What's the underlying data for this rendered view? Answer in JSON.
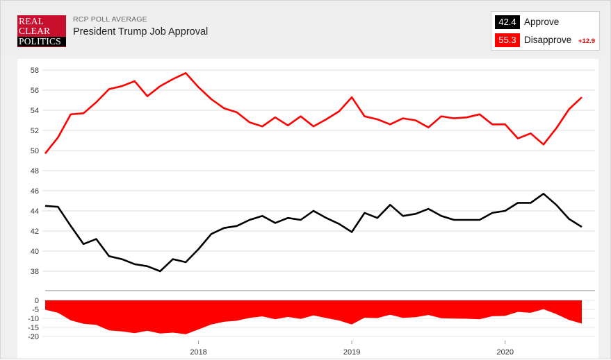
{
  "header": {
    "kicker": "RCP POLL AVERAGE",
    "title": "President Trump Job Approval",
    "logo_lines": [
      "REAL",
      "CLEAR",
      "POLITICS"
    ]
  },
  "legend": {
    "approve": {
      "value": "42.4",
      "label": "Approve",
      "color": "#000000"
    },
    "disapprove": {
      "value": "55.3",
      "label": "Disapprove",
      "color": "#ff0000"
    },
    "spread": "+12.9"
  },
  "chart_data": [
    {
      "type": "line",
      "ylim": [
        36,
        58
      ],
      "ytick_labels": [
        "38",
        "40",
        "42",
        "44",
        "46",
        "48",
        "50",
        "52",
        "54",
        "56",
        "58"
      ],
      "x_labels": [
        "2018",
        "2019",
        "2020"
      ],
      "x": [
        "2017-01",
        "2017-02",
        "2017-03",
        "2017-04",
        "2017-05",
        "2017-06",
        "2017-07",
        "2017-08",
        "2017-09",
        "2017-10",
        "2017-11",
        "2017-12",
        "2018-01",
        "2018-02",
        "2018-03",
        "2018-04",
        "2018-05",
        "2018-06",
        "2018-07",
        "2018-08",
        "2018-09",
        "2018-10",
        "2018-11",
        "2018-12",
        "2019-01",
        "2019-02",
        "2019-03",
        "2019-04",
        "2019-05",
        "2019-06",
        "2019-07",
        "2019-08",
        "2019-09",
        "2019-10",
        "2019-11",
        "2019-12",
        "2020-01",
        "2020-02",
        "2020-03",
        "2020-04",
        "2020-05",
        "2020-06",
        "2020-07"
      ],
      "series": [
        {
          "name": "Approve",
          "color": "#000000",
          "values": [
            44.5,
            44.4,
            42.5,
            40.7,
            41.2,
            39.5,
            39.2,
            38.7,
            38.5,
            38.0,
            39.2,
            38.9,
            40.2,
            41.7,
            42.3,
            42.5,
            43.1,
            43.5,
            42.8,
            43.3,
            43.1,
            44.0,
            43.3,
            42.7,
            41.9,
            43.8,
            43.3,
            44.6,
            43.5,
            43.7,
            44.2,
            43.5,
            43.1,
            43.1,
            43.1,
            43.8,
            44.0,
            44.8,
            44.8,
            45.7,
            44.6,
            43.2,
            42.4
          ]
        },
        {
          "name": "Disapprove",
          "color": "#ff0000",
          "values": [
            49.7,
            51.3,
            53.6,
            53.7,
            54.8,
            56.1,
            56.4,
            56.9,
            55.4,
            56.4,
            57.1,
            57.7,
            56.3,
            55.1,
            54.2,
            53.8,
            52.8,
            52.4,
            53.3,
            52.5,
            53.4,
            52.4,
            53.1,
            53.9,
            55.3,
            53.4,
            53.1,
            52.6,
            53.2,
            53.0,
            52.3,
            53.4,
            53.2,
            53.3,
            53.6,
            52.6,
            52.6,
            51.2,
            51.7,
            50.6,
            52.2,
            54.1,
            55.3
          ]
        }
      ]
    },
    {
      "type": "area",
      "ylim": [
        -21,
        1
      ],
      "ytick_labels": [
        "0",
        "-5",
        "-10",
        "-15",
        "-20"
      ],
      "x_labels": [
        "2018",
        "2019",
        "2020"
      ],
      "x": [
        "2017-01",
        "2017-02",
        "2017-03",
        "2017-04",
        "2017-05",
        "2017-06",
        "2017-07",
        "2017-08",
        "2017-09",
        "2017-10",
        "2017-11",
        "2017-12",
        "2018-01",
        "2018-02",
        "2018-03",
        "2018-04",
        "2018-05",
        "2018-06",
        "2018-07",
        "2018-08",
        "2018-09",
        "2018-10",
        "2018-11",
        "2018-12",
        "2019-01",
        "2019-02",
        "2019-03",
        "2019-04",
        "2019-05",
        "2019-06",
        "2019-07",
        "2019-08",
        "2019-09",
        "2019-10",
        "2019-11",
        "2019-12",
        "2020-01",
        "2020-02",
        "2020-03",
        "2020-04",
        "2020-05",
        "2020-06",
        "2020-07"
      ],
      "series": [
        {
          "name": "Spread",
          "color": "#ff0000",
          "values": [
            -5.2,
            -6.9,
            -11.1,
            -13.0,
            -13.6,
            -16.6,
            -17.2,
            -18.2,
            -16.9,
            -18.4,
            -17.9,
            -18.8,
            -16.1,
            -13.4,
            -11.9,
            -11.3,
            -9.7,
            -8.9,
            -10.5,
            -9.2,
            -10.3,
            -8.4,
            -9.8,
            -11.2,
            -13.4,
            -9.6,
            -9.8,
            -8.0,
            -9.7,
            -9.3,
            -8.1,
            -9.9,
            -10.1,
            -10.2,
            -10.5,
            -8.8,
            -8.6,
            -6.4,
            -6.9,
            -4.9,
            -7.6,
            -10.9,
            -12.9
          ]
        }
      ]
    }
  ]
}
